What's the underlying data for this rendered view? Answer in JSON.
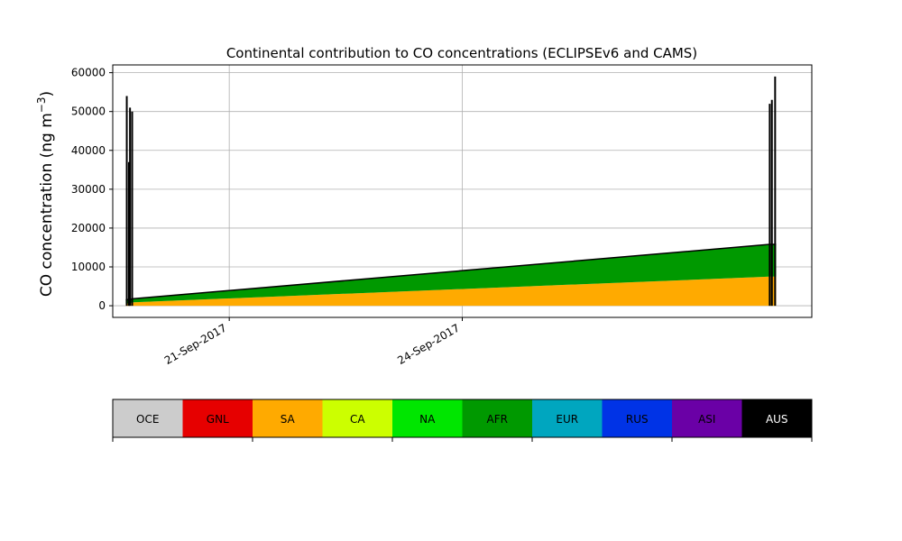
{
  "chart_data": {
    "type": "area",
    "title": "Continental contribution to CO concentrations (ECLIPSEv6 and CAMS)",
    "ylabel_text": "CO concentration (ng m",
    "ylabel_sup": "−3",
    "ylabel_close": ")",
    "xlabel": "",
    "grid": true,
    "ylim": [
      -3000,
      62000
    ],
    "xlim": [
      "2017-09-19T12:00",
      "2017-09-28T12:00"
    ],
    "yticks": [
      0,
      10000,
      20000,
      30000,
      40000,
      50000,
      60000
    ],
    "ytick_labels": [
      "0",
      "10000",
      "20000",
      "30000",
      "40000",
      "50000",
      "60000"
    ],
    "xticks": [
      "2017-09-21",
      "2017-09-24"
    ],
    "xtick_labels": [
      "21-Sep-2017",
      "24-Sep-2017"
    ],
    "series": [
      {
        "name": "SA",
        "color": "#ffaa00",
        "segments": [
          {
            "x": [
              "2017-09-19T16:00",
              "2017-09-19T18:30"
            ],
            "y": [
              500,
              900
            ]
          },
          {
            "x": [
              "2017-09-19T18:30",
              "2017-09-27T23:00"
            ],
            "y": [
              900,
              7500
            ]
          },
          {
            "x": [
              "2017-09-27T23:00",
              "2017-09-28T01:00"
            ],
            "y": [
              7500,
              7500
            ]
          }
        ]
      },
      {
        "name": "AFR",
        "color": "#009900",
        "segments": [
          {
            "x": [
              "2017-09-19T16:00",
              "2017-09-19T18:30"
            ],
            "y": [
              1500,
              1800
            ]
          },
          {
            "x": [
              "2017-09-19T18:30",
              "2017-09-27T23:00"
            ],
            "y": [
              1800,
              15800
            ]
          },
          {
            "x": [
              "2017-09-27T23:00",
              "2017-09-28T01:00"
            ],
            "y": [
              15800,
              15800
            ]
          }
        ]
      },
      {
        "name": "AUS",
        "color": "#000000",
        "total_line": true,
        "spikes": [
          {
            "x": "2017-09-19T16:20",
            "y": 54000
          },
          {
            "x": "2017-09-19T17:00",
            "y": 37000
          },
          {
            "x": "2017-09-19T17:20",
            "y": 51000
          },
          {
            "x": "2017-09-19T18:00",
            "y": 50000
          },
          {
            "x": "2017-09-27T23:00",
            "y": 52000
          },
          {
            "x": "2017-09-27T23:40",
            "y": 53000
          },
          {
            "x": "2017-09-28T00:40",
            "y": 59000
          }
        ]
      }
    ]
  },
  "legend": {
    "placement": "bottom",
    "items": [
      {
        "label": "OCE",
        "color": "#cccccc"
      },
      {
        "label": "GNL",
        "color": "#e60000"
      },
      {
        "label": "SA",
        "color": "#ffaa00"
      },
      {
        "label": "CA",
        "color": "#ccff00"
      },
      {
        "label": "NA",
        "color": "#00e600"
      },
      {
        "label": "AFR",
        "color": "#009900"
      },
      {
        "label": "EUR",
        "color": "#00a6bf"
      },
      {
        "label": "RUS",
        "color": "#0033e6"
      },
      {
        "label": "ASI",
        "color": "#6a00a6"
      },
      {
        "label": "AUS",
        "color": "#000000",
        "text_color": "#ffffff"
      }
    ]
  }
}
